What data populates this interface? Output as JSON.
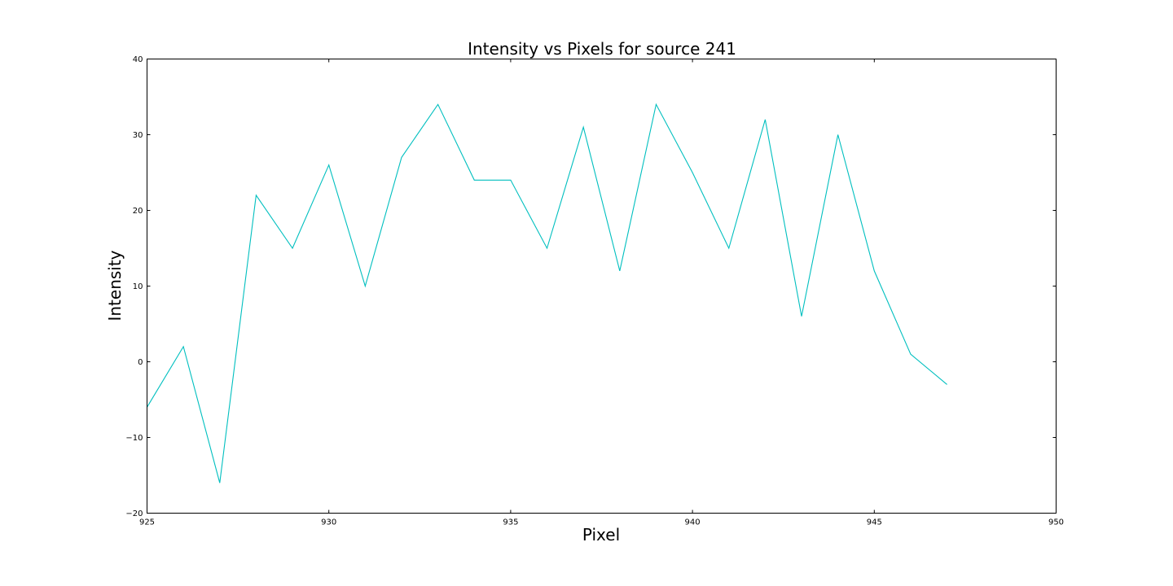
{
  "chart_data": {
    "type": "line",
    "title": "Intensity vs Pixels for source 241",
    "xlabel": "Pixel",
    "ylabel": "Intensity",
    "xlim": [
      925,
      950
    ],
    "ylim": [
      -20,
      40
    ],
    "x_ticks": [
      925,
      930,
      935,
      940,
      945,
      950
    ],
    "x_tick_labels": [
      "925",
      "930",
      "935",
      "940",
      "945",
      "950"
    ],
    "y_ticks": [
      -20,
      -10,
      0,
      10,
      20,
      30,
      40
    ],
    "y_tick_labels": [
      "−20",
      "−10",
      "0",
      "10",
      "20",
      "30",
      "40"
    ],
    "grid": false,
    "legend": "none",
    "series": [
      {
        "color": "#00bfbf",
        "x": [
          925,
          926,
          927,
          928,
          929,
          930,
          931,
          932,
          933,
          934,
          935,
          936,
          937,
          938,
          939,
          940,
          941,
          942,
          943,
          944,
          945,
          946,
          947
        ],
        "y": [
          -6,
          2,
          -16,
          22,
          15,
          26,
          10,
          27,
          34,
          24,
          24,
          15,
          31,
          12,
          34,
          25,
          15,
          32,
          6,
          30,
          12,
          1,
          -3
        ]
      }
    ]
  }
}
